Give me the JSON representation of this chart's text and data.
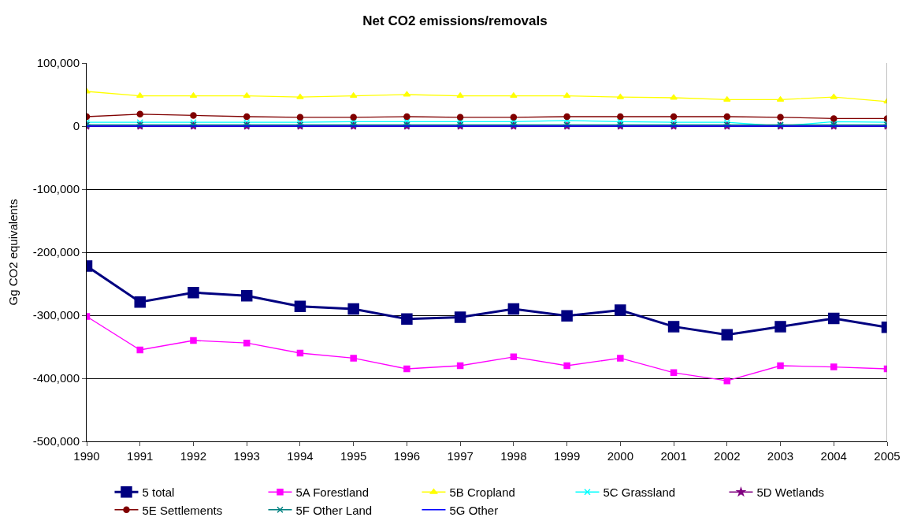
{
  "chart_data": {
    "type": "line",
    "title": "Net CO2 emissions/removals",
    "ylabel": "Gg CO2 equivalents",
    "x": [
      1990,
      1991,
      1992,
      1993,
      1994,
      1995,
      1996,
      1997,
      1998,
      1999,
      2000,
      2001,
      2002,
      2003,
      2004,
      2005
    ],
    "xlim": [
      1990,
      2005
    ],
    "xticks": [
      1990,
      1991,
      1992,
      1993,
      1994,
      1995,
      1996,
      1997,
      1998,
      1999,
      2000,
      2001,
      2002,
      2003,
      2004,
      2005
    ],
    "ylim": [
      -500000,
      100000
    ],
    "yticks": [
      {
        "value": -500000,
        "label": "-500,000"
      },
      {
        "value": -400000,
        "label": "-400,000"
      },
      {
        "value": -300000,
        "label": "-300,000"
      },
      {
        "value": -200000,
        "label": "-200,000"
      },
      {
        "value": -100000,
        "label": "-100,000"
      },
      {
        "value": 0,
        "label": "0"
      },
      {
        "value": 100000,
        "label": "100,000"
      }
    ],
    "grid": "y",
    "legend": "bottom",
    "series": [
      {
        "name": "5 total",
        "color": "#000080",
        "marker": "square",
        "values": [
          -222000,
          -279000,
          -264000,
          -269000,
          -286000,
          -290000,
          -306000,
          -303000,
          -290000,
          -301000,
          -292000,
          -318000,
          -331000,
          -318000,
          -305000,
          -319000
        ]
      },
      {
        "name": "5A Forestland",
        "color": "#ff00ff",
        "marker": "square",
        "values": [
          -302000,
          -355000,
          -340000,
          -344000,
          -360000,
          -368000,
          -385000,
          -380000,
          -366000,
          -380000,
          -368000,
          -391000,
          -404000,
          -380000,
          -382000,
          -385000
        ]
      },
      {
        "name": "5B Cropland",
        "color": "#ffff00",
        "marker": "triangle",
        "values": [
          55000,
          48000,
          48000,
          48000,
          46000,
          48000,
          50000,
          48000,
          48000,
          48000,
          46000,
          45000,
          42000,
          42000,
          46000,
          39000
        ]
      },
      {
        "name": "5C Grassland",
        "color": "#00ffff",
        "marker": "cross",
        "values": [
          6000,
          6000,
          6000,
          6000,
          6000,
          7000,
          7000,
          7000,
          7000,
          9000,
          7000,
          6000,
          6000,
          0,
          7000,
          6000
        ]
      },
      {
        "name": "5D Wetlands",
        "color": "#800080",
        "marker": "star",
        "values": [
          0,
          0,
          0,
          0,
          0,
          0,
          0,
          0,
          0,
          0,
          0,
          0,
          0,
          0,
          0,
          0
        ]
      },
      {
        "name": "5E Settlements",
        "color": "#800000",
        "marker": "circle",
        "values": [
          15000,
          19000,
          17000,
          15000,
          14000,
          14000,
          15000,
          14000,
          14000,
          15000,
          15000,
          15000,
          15000,
          14000,
          12000,
          12000
        ]
      },
      {
        "name": "5F Other Land",
        "color": "#008080",
        "marker": "cross",
        "values": [
          2000,
          2000,
          2000,
          2000,
          2000,
          2000,
          2000,
          2000,
          2000,
          2000,
          2000,
          2000,
          2000,
          2000,
          2000,
          2000
        ]
      },
      {
        "name": "5G Other",
        "color": "#0000ff",
        "marker": "none",
        "values": [
          0,
          0,
          0,
          0,
          0,
          0,
          0,
          0,
          0,
          0,
          0,
          0,
          0,
          0,
          0,
          0
        ]
      }
    ]
  }
}
